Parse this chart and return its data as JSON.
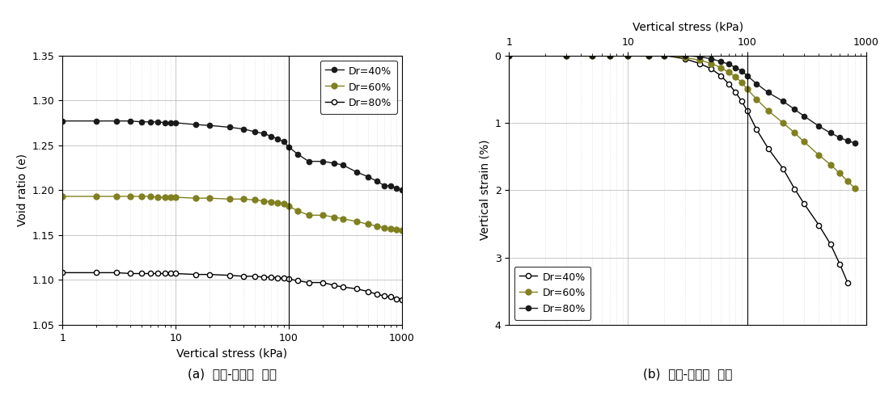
{
  "left_chart": {
    "title_bottom": "(a)  응력-간극비  관계",
    "xlabel": "Vertical stress (kPa)",
    "ylabel": "Void ratio (e)",
    "xlim": [
      1,
      1000
    ],
    "ylim": [
      1.05,
      1.35
    ],
    "yticks": [
      1.05,
      1.1,
      1.15,
      1.2,
      1.25,
      1.3,
      1.35
    ],
    "Dr40_x": [
      1,
      2,
      3,
      4,
      5,
      6,
      7,
      8,
      9,
      10,
      15,
      20,
      30,
      40,
      50,
      60,
      70,
      80,
      90,
      100,
      120,
      150,
      200,
      250,
      300,
      400,
      500,
      600,
      700,
      800,
      900,
      1000
    ],
    "Dr40_e": [
      1.277,
      1.277,
      1.277,
      1.277,
      1.276,
      1.276,
      1.276,
      1.275,
      1.275,
      1.275,
      1.273,
      1.272,
      1.27,
      1.268,
      1.265,
      1.263,
      1.26,
      1.257,
      1.254,
      1.248,
      1.24,
      1.232,
      1.232,
      1.23,
      1.228,
      1.22,
      1.215,
      1.21,
      1.205,
      1.205,
      1.202,
      1.2
    ],
    "Dr60_x": [
      1,
      2,
      3,
      4,
      5,
      6,
      7,
      8,
      9,
      10,
      15,
      20,
      30,
      40,
      50,
      60,
      70,
      80,
      90,
      100,
      120,
      150,
      200,
      250,
      300,
      400,
      500,
      600,
      700,
      800,
      900,
      1000
    ],
    "Dr60_e": [
      1.193,
      1.193,
      1.193,
      1.193,
      1.193,
      1.193,
      1.192,
      1.192,
      1.192,
      1.192,
      1.191,
      1.191,
      1.19,
      1.19,
      1.189,
      1.188,
      1.187,
      1.186,
      1.185,
      1.182,
      1.177,
      1.172,
      1.172,
      1.17,
      1.168,
      1.165,
      1.162,
      1.16,
      1.158,
      1.157,
      1.156,
      1.155
    ],
    "Dr80_x": [
      1,
      2,
      3,
      4,
      5,
      6,
      7,
      8,
      9,
      10,
      15,
      20,
      30,
      40,
      50,
      60,
      70,
      80,
      90,
      100,
      120,
      150,
      200,
      250,
      300,
      400,
      500,
      600,
      700,
      800,
      900,
      1000
    ],
    "Dr80_e": [
      1.108,
      1.108,
      1.108,
      1.107,
      1.107,
      1.107,
      1.107,
      1.107,
      1.107,
      1.107,
      1.106,
      1.106,
      1.105,
      1.104,
      1.104,
      1.103,
      1.103,
      1.102,
      1.102,
      1.101,
      1.099,
      1.097,
      1.097,
      1.094,
      1.092,
      1.09,
      1.087,
      1.084,
      1.082,
      1.081,
      1.079,
      1.078
    ],
    "color_Dr40": "#1a1a1a",
    "color_Dr60": "#808020",
    "vline_x": 100
  },
  "right_chart": {
    "title_top": "Vertical stress (kPa)",
    "title_bottom": "(b)  응력-변형률  관계",
    "ylabel": "Vertical strain (%)",
    "xlim": [
      1,
      1000
    ],
    "ylim": [
      4.0,
      0.0
    ],
    "yticks": [
      0.0,
      1.0,
      2.0,
      3.0,
      4.0
    ],
    "Dr40_x": [
      1,
      3,
      5,
      7,
      10,
      15,
      20,
      30,
      40,
      50,
      60,
      70,
      80,
      90,
      100,
      120,
      150,
      200,
      250,
      300,
      400,
      500,
      600,
      700
    ],
    "Dr40_strain": [
      0.0,
      0.0,
      0.0,
      0.0,
      0.0,
      0.0,
      0.0,
      0.05,
      0.12,
      0.2,
      0.3,
      0.42,
      0.55,
      0.68,
      0.82,
      1.1,
      1.38,
      1.68,
      1.98,
      2.2,
      2.52,
      2.8,
      3.1,
      3.38
    ],
    "Dr60_x": [
      1,
      3,
      5,
      7,
      10,
      15,
      20,
      30,
      40,
      50,
      60,
      70,
      80,
      90,
      100,
      120,
      150,
      200,
      250,
      300,
      400,
      500,
      600,
      700,
      800
    ],
    "Dr60_strain": [
      0.0,
      0.0,
      0.0,
      0.0,
      0.0,
      0.0,
      0.0,
      0.03,
      0.07,
      0.12,
      0.18,
      0.25,
      0.32,
      0.4,
      0.5,
      0.65,
      0.82,
      1.0,
      1.15,
      1.28,
      1.48,
      1.62,
      1.75,
      1.87,
      1.97
    ],
    "Dr80_x": [
      1,
      3,
      5,
      7,
      10,
      15,
      20,
      30,
      40,
      50,
      60,
      70,
      80,
      90,
      100,
      120,
      150,
      200,
      250,
      300,
      400,
      500,
      600,
      700,
      800
    ],
    "Dr80_strain": [
      0.0,
      0.0,
      0.0,
      0.0,
      0.0,
      0.0,
      0.0,
      0.0,
      0.02,
      0.05,
      0.09,
      0.13,
      0.18,
      0.23,
      0.3,
      0.42,
      0.55,
      0.68,
      0.8,
      0.9,
      1.05,
      1.15,
      1.22,
      1.27,
      1.3
    ],
    "color_Dr40": "#808080",
    "color_Dr60": "#808020",
    "color_Dr80": "#1a1a1a",
    "vline_x": 100
  }
}
